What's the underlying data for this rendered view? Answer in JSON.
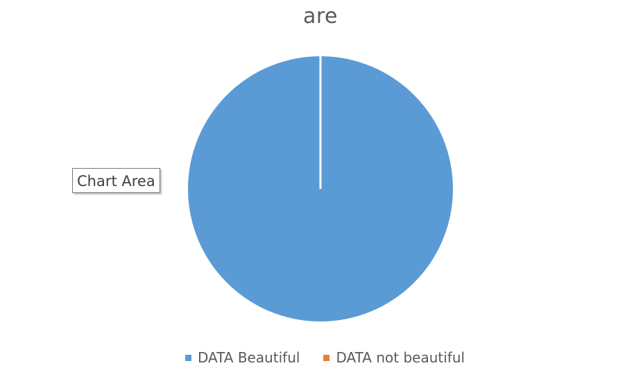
{
  "chart_data": {
    "type": "pie",
    "title": "are",
    "categories": [
      "DATA Beautiful",
      "DATA not beautiful"
    ],
    "values": [
      100,
      0
    ],
    "colors": [
      "#5B9BD5",
      "#ED7D31"
    ],
    "legend_position": "bottom",
    "slice_separator_color": "#FFFFFF"
  },
  "tooltip": {
    "text": "Chart Area"
  }
}
